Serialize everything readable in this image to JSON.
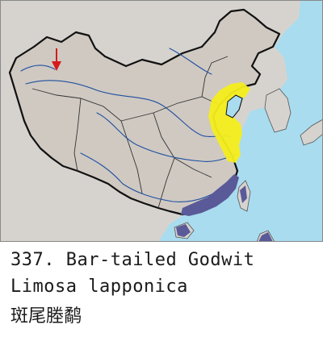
{
  "species": {
    "number": "337.",
    "english_name": "Bar-tailed Godwit",
    "latin_name": "Limosa lapponica",
    "chinese_name": "斑尾塍鹬"
  },
  "map": {
    "colors": {
      "sea": "#a9dcef",
      "land_china": "#cfc9c2",
      "land_other": "#d6d3cf",
      "border": "#111111",
      "river": "#1f4fa0",
      "migration_range": "#f4ee1c",
      "wintering_range": "#5a5a98",
      "arrow": "#d61a1a"
    },
    "legend_note": "",
    "features": [
      "migration-range",
      "wintering-range",
      "locator-arrow"
    ]
  }
}
